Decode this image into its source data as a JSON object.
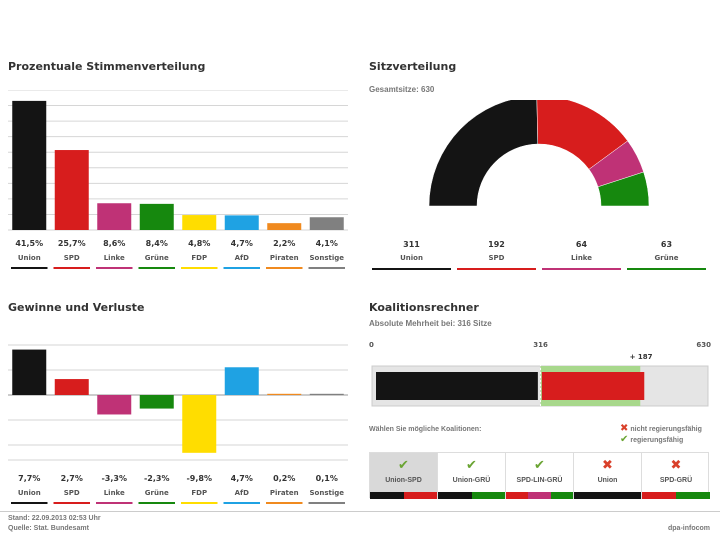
{
  "colors": {
    "union": "#141414",
    "spd": "#d71d1d",
    "linke": "#bf3276",
    "gruene": "#16880e",
    "fdp": "#ffdd00",
    "afd": "#1fa2e3",
    "piraten": "#f08a1f",
    "sonstige": "#808080",
    "check": "#6aa432",
    "cross": "#d9402a",
    "majority_ok": "#a8d88c",
    "majority_needed": "#e5e5e5"
  },
  "vote_share": {
    "title": "Prozentuale Stimmenverteilung",
    "chart_data": {
      "type": "bar",
      "categories": [
        "Union",
        "SPD",
        "Linke",
        "Grüne",
        "FDP",
        "AfD",
        "Piraten",
        "Sonstige"
      ],
      "labels": [
        "41,5%",
        "25,7%",
        "8,6%",
        "8,4%",
        "4,8%",
        "4,7%",
        "2,2%",
        "4,1%"
      ],
      "values": [
        41.5,
        25.7,
        8.6,
        8.4,
        4.8,
        4.7,
        2.2,
        4.1
      ],
      "color_keys": [
        "union",
        "spd",
        "linke",
        "gruene",
        "fdp",
        "afd",
        "piraten",
        "sonstige"
      ],
      "ylim": [
        0,
        45
      ]
    }
  },
  "seats": {
    "title": "Sitzverteilung",
    "total_label": "Gesamtsitze: 630",
    "chart_data": {
      "type": "pie",
      "style": "half-donut",
      "categories": [
        "Union",
        "SPD",
        "Linke",
        "Grüne"
      ],
      "values": [
        311,
        192,
        64,
        63
      ],
      "labels": [
        "311",
        "192",
        "64",
        "63"
      ],
      "color_keys": [
        "union",
        "spd",
        "linke",
        "gruene"
      ],
      "total": 630
    }
  },
  "gains": {
    "title": "Gewinne und Verluste",
    "chart_data": {
      "type": "bar",
      "categories": [
        "Union",
        "SPD",
        "Linke",
        "Grüne",
        "FDP",
        "AfD",
        "Piraten",
        "Sonstige"
      ],
      "labels": [
        "7,7%",
        "2,7%",
        "-3,3%",
        "-2,3%",
        "-9,8%",
        "4,7%",
        "0,2%",
        "0,1%"
      ],
      "values": [
        7.7,
        2.7,
        -3.3,
        -2.3,
        -9.8,
        4.7,
        0.2,
        0.1
      ],
      "color_keys": [
        "union",
        "spd",
        "linke",
        "gruene",
        "fdp",
        "afd",
        "piraten",
        "sonstige"
      ],
      "ylim": [
        -10,
        8
      ]
    }
  },
  "coalition": {
    "title": "Koalitionsrechner",
    "majority_label": "Absolute Mehrheit bei: 316 Sitze",
    "scale_start": "0",
    "scale_majority": "316",
    "scale_end": "630",
    "surplus_label": "+ 187",
    "chart_data": {
      "type": "bar",
      "stacked": true,
      "categories": [
        "Union",
        "SPD"
      ],
      "values": [
        311,
        192
      ],
      "total": 630,
      "majority": 316
    },
    "prompt": "Wählen Sie mögliche Koalitionen:",
    "legend_cross": "nicht regierungsfähig",
    "legend_check": "regierungsfähig",
    "options": [
      {
        "label": "Union-SPD",
        "mark": "✔",
        "ok": true,
        "colors": [
          "union",
          "spd"
        ]
      },
      {
        "label": "Union-GRÜ",
        "mark": "✔",
        "ok": true,
        "colors": [
          "union",
          "gruene"
        ]
      },
      {
        "label": "SPD-LIN-GRÜ",
        "mark": "✔",
        "ok": true,
        "colors": [
          "spd",
          "linke",
          "gruene"
        ]
      },
      {
        "label": "Union",
        "mark": "✖",
        "ok": false,
        "colors": [
          "union"
        ]
      },
      {
        "label": "SPD-GRÜ",
        "mark": "✖",
        "ok": false,
        "colors": [
          "spd",
          "gruene"
        ]
      }
    ]
  },
  "footer": {
    "stand": "Stand: 22.09.2013 02:53 Uhr",
    "quelle": "Quelle: Stat. Bundesamt",
    "brand": "dpa-infocom"
  }
}
